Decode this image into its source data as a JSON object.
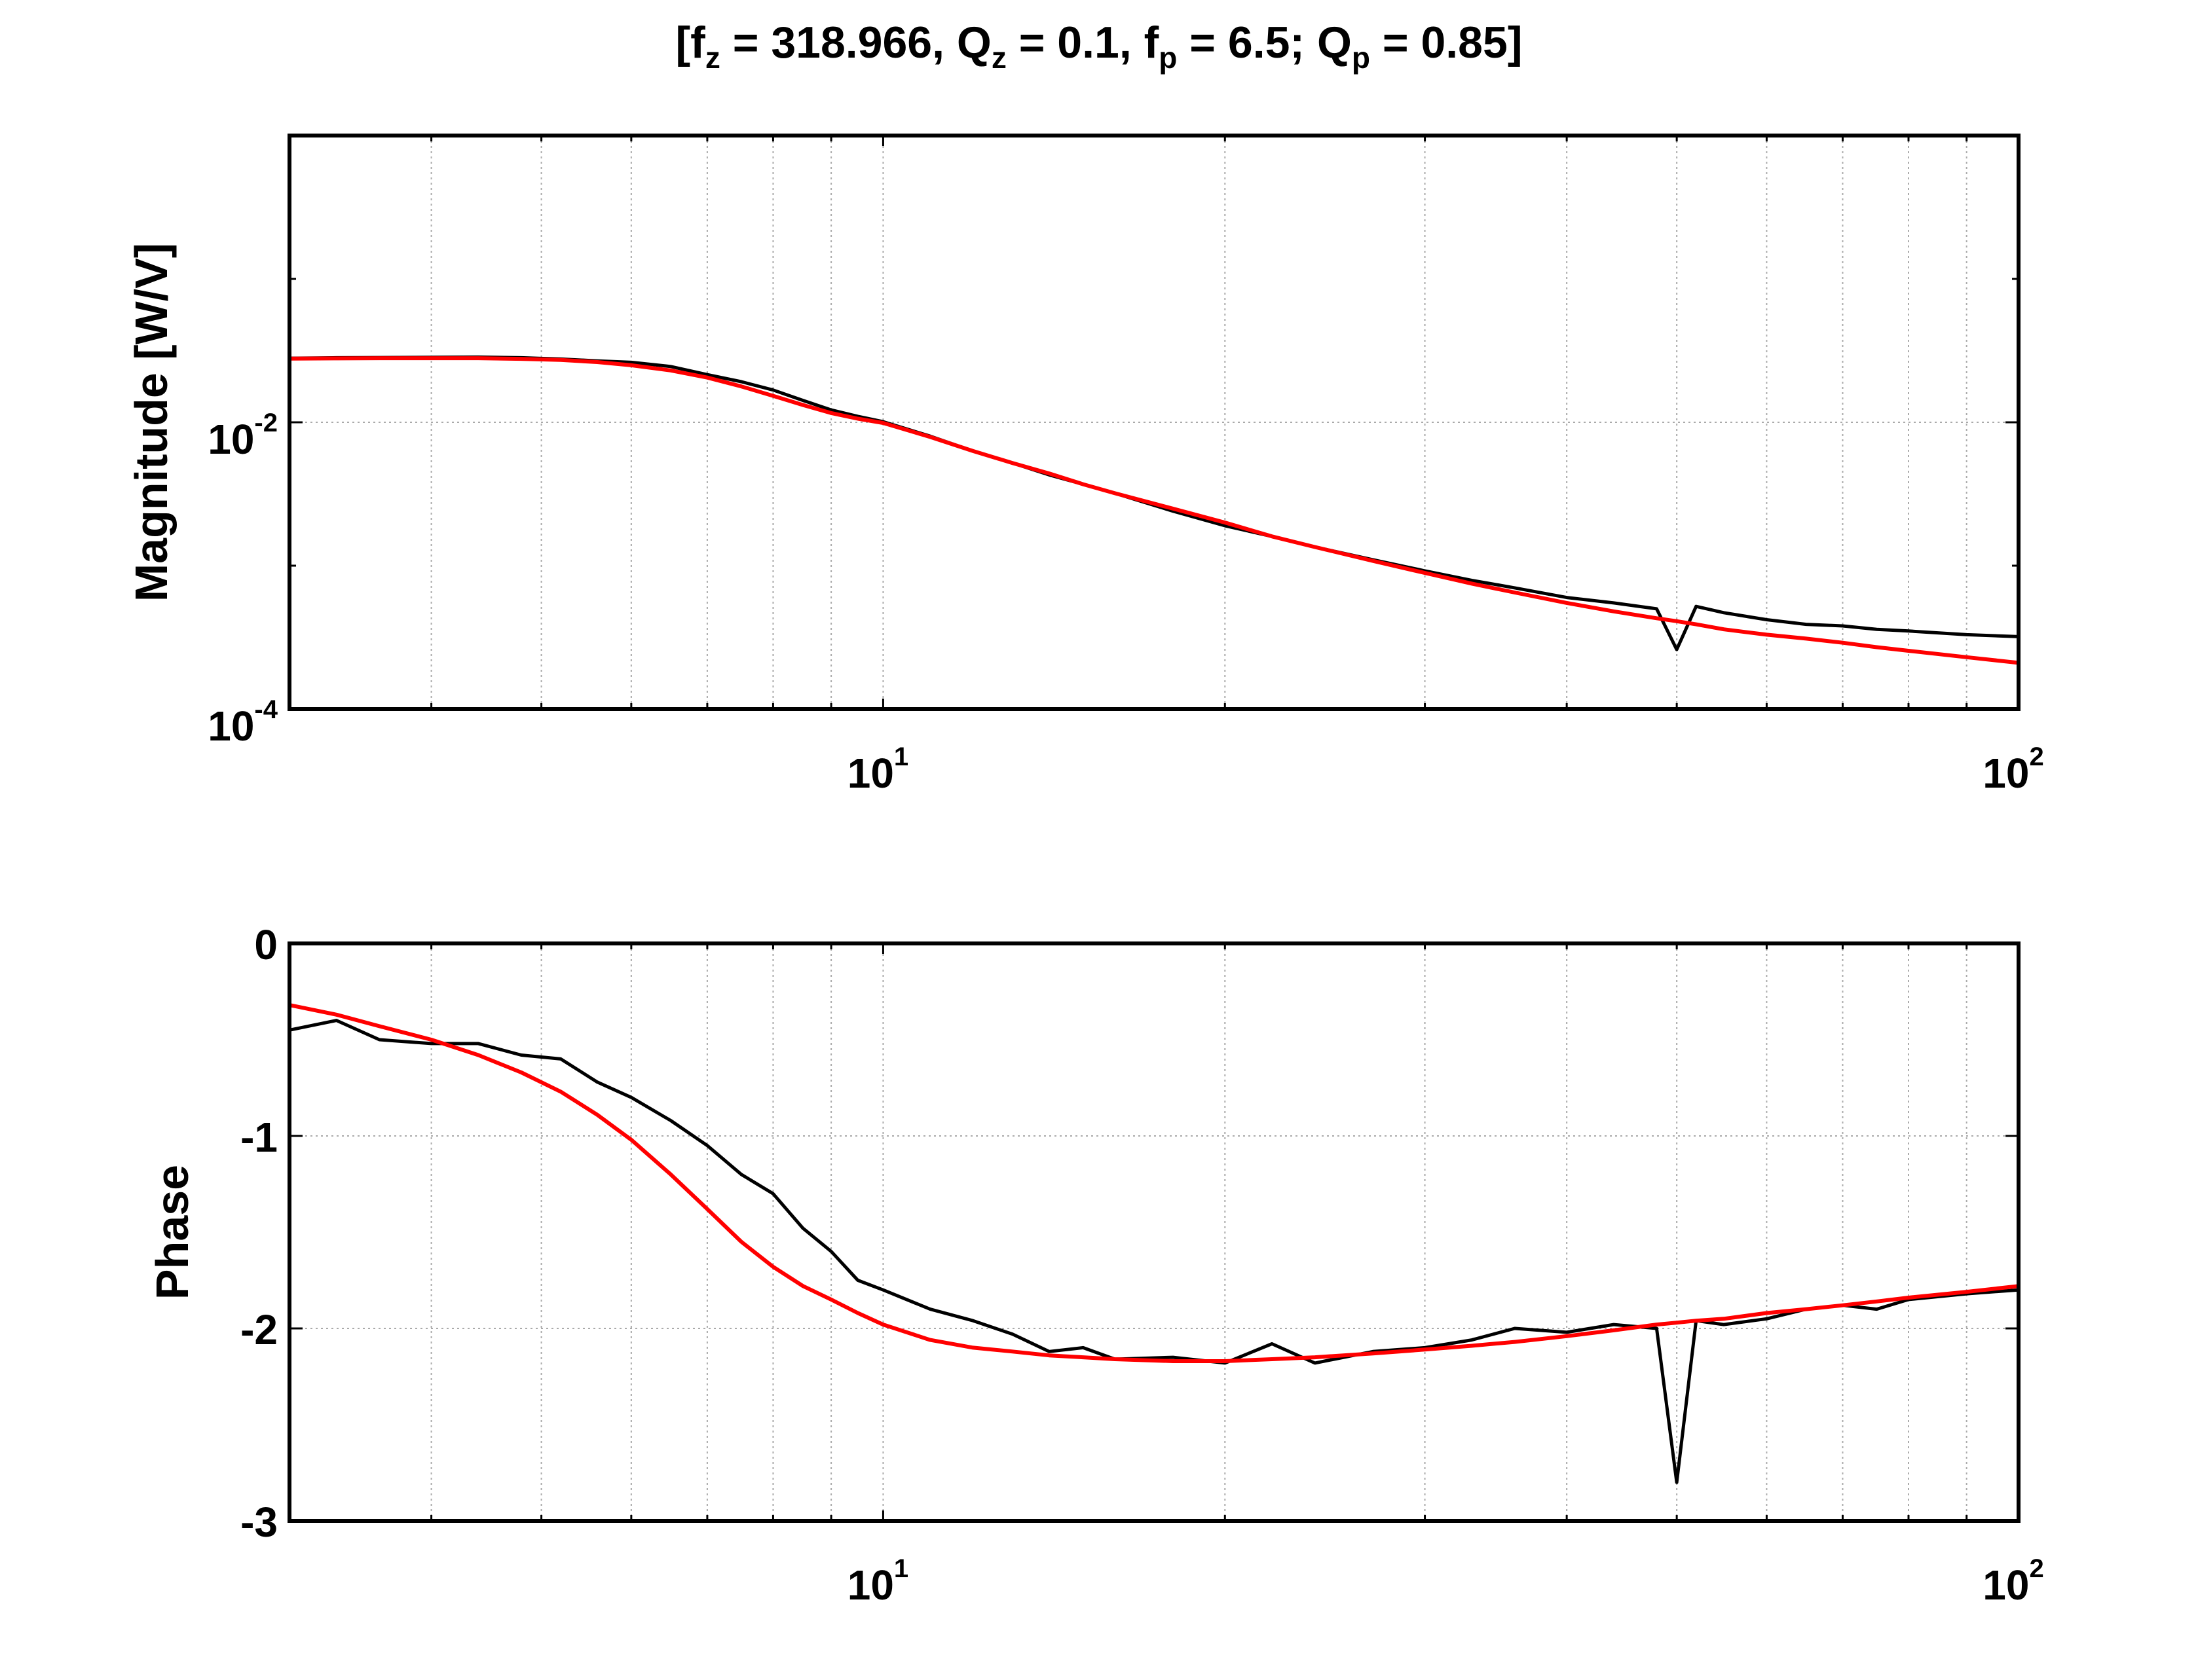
{
  "figure": {
    "title": {
      "parts": [
        {
          "text": "[f",
          "style": "normal"
        },
        {
          "text": "z",
          "style": "sub"
        },
        {
          "text": " = 318.966, Q",
          "style": "normal"
        },
        {
          "text": "z",
          "style": "sub"
        },
        {
          "text": " = 0.1, f",
          "style": "normal"
        },
        {
          "text": "p",
          "style": "sub"
        },
        {
          "text": " = 6.5; Q",
          "style": "normal"
        },
        {
          "text": "p",
          "style": "sub"
        },
        {
          "text": " = 0.85]",
          "style": "normal"
        }
      ]
    },
    "colors": {
      "measured": "#000000",
      "fit": "#ff0000",
      "grid": "#aaaaaa",
      "axes": "#000000"
    }
  },
  "chart_data": [
    {
      "type": "line",
      "panel": "magnitude",
      "ylabel": "Magnitude [W/V]",
      "xscale": "log",
      "yscale": "log",
      "xlim": [
        3,
        100
      ],
      "ylim": [
        0.0001,
        1
      ],
      "grid": true,
      "x_ticks": [
        {
          "base": "10",
          "exp": "1"
        },
        {
          "base": "10",
          "exp": "2"
        }
      ],
      "y_ticks": [
        {
          "base": "10",
          "exp": "-4"
        },
        {
          "base": "10",
          "exp": "-2"
        }
      ],
      "fit_params": {
        "fz": 318.966,
        "Qz": 0.1,
        "fp": 6.5,
        "Qp": 0.85,
        "gain": 0.028
      },
      "x_points": [
        3.0,
        3.3,
        3.6,
        4.0,
        4.4,
        4.8,
        5.2,
        5.6,
        6.0,
        6.5,
        7.0,
        7.5,
        8.0,
        8.5,
        9.0,
        9.5,
        10,
        11,
        12,
        13,
        14,
        15,
        16,
        18,
        20,
        22,
        24,
        27,
        30,
        33,
        36,
        40,
        44,
        48,
        50,
        52,
        55,
        60,
        65,
        70,
        75,
        80,
        90,
        100
      ],
      "series": [
        {
          "role": "measured",
          "color": "#000000",
          "values": [
            0.028,
            0.0282,
            0.0283,
            0.0284,
            0.0285,
            0.0282,
            0.0276,
            0.0268,
            0.0262,
            0.0245,
            0.0215,
            0.0192,
            0.0168,
            0.0142,
            0.0122,
            0.011,
            0.0101,
            0.008,
            0.0063,
            0.0052,
            0.0043,
            0.0037,
            0.0032,
            0.0024,
            0.0019,
            0.0016,
            0.00135,
            0.0011,
            0.00092,
            0.00079,
            0.0007,
            0.0006,
            0.00055,
            0.0005,
            0.00026,
            0.00052,
            0.00047,
            0.00042,
            0.00039,
            0.00038,
            0.00036,
            0.00035,
            0.00033,
            0.00032
          ]
        },
        {
          "role": "fit",
          "color": "#ff0000",
          "values": [
            0.0278,
            0.0279,
            0.028,
            0.028,
            0.028,
            0.0277,
            0.0272,
            0.0263,
            0.025,
            0.023,
            0.0205,
            0.0178,
            0.0153,
            0.0132,
            0.0116,
            0.0106,
            0.0099,
            0.0079,
            0.0063,
            0.0052,
            0.0044,
            0.0037,
            0.0032,
            0.0025,
            0.002,
            0.0016,
            0.00135,
            0.00108,
            0.00089,
            0.00075,
            0.00065,
            0.00055,
            0.00048,
            0.00043,
            0.00041,
            0.00039,
            0.00036,
            0.00033,
            0.00031,
            0.00029,
            0.00027,
            0.000255,
            0.00023,
            0.00021
          ]
        }
      ]
    },
    {
      "type": "line",
      "panel": "phase",
      "ylabel": "Phase",
      "xscale": "log",
      "yscale": "linear",
      "xlim": [
        3,
        100
      ],
      "ylim": [
        -3,
        0
      ],
      "grid": true,
      "x_ticks": [
        {
          "base": "10",
          "exp": "1"
        },
        {
          "base": "10",
          "exp": "2"
        }
      ],
      "y_ticks": [
        {
          "value": 0,
          "label": "0"
        },
        {
          "value": -1,
          "label": "-1"
        },
        {
          "value": -2,
          "label": "-2"
        },
        {
          "value": -3,
          "label": "-3"
        }
      ],
      "x_points": [
        3.0,
        3.3,
        3.6,
        4.0,
        4.4,
        4.8,
        5.2,
        5.6,
        6.0,
        6.5,
        7.0,
        7.5,
        8.0,
        8.5,
        9.0,
        9.5,
        10,
        11,
        12,
        13,
        14,
        15,
        16,
        18,
        20,
        22,
        24,
        27,
        30,
        33,
        36,
        40,
        44,
        48,
        50,
        52,
        55,
        60,
        65,
        70,
        75,
        80,
        90,
        100
      ],
      "series": [
        {
          "role": "measured",
          "color": "#000000",
          "values": [
            -0.45,
            -0.4,
            -0.5,
            -0.52,
            -0.52,
            -0.58,
            -0.6,
            -0.72,
            -0.8,
            -0.92,
            -1.05,
            -1.2,
            -1.3,
            -1.48,
            -1.6,
            -1.75,
            -1.8,
            -1.9,
            -1.96,
            -2.03,
            -2.12,
            -2.1,
            -2.16,
            -2.15,
            -2.18,
            -2.08,
            -2.18,
            -2.12,
            -2.1,
            -2.06,
            -2.0,
            -2.02,
            -1.98,
            -2.0,
            -2.8,
            -1.96,
            -1.98,
            -1.95,
            -1.9,
            -1.88,
            -1.9,
            -1.85,
            -1.82,
            -1.8
          ]
        },
        {
          "role": "fit",
          "color": "#ff0000",
          "values": [
            -0.32,
            -0.37,
            -0.43,
            -0.5,
            -0.58,
            -0.67,
            -0.77,
            -0.89,
            -1.02,
            -1.2,
            -1.38,
            -1.55,
            -1.68,
            -1.78,
            -1.85,
            -1.92,
            -1.98,
            -2.06,
            -2.1,
            -2.12,
            -2.14,
            -2.15,
            -2.16,
            -2.17,
            -2.17,
            -2.16,
            -2.15,
            -2.13,
            -2.11,
            -2.09,
            -2.07,
            -2.04,
            -2.01,
            -1.98,
            -1.97,
            -1.96,
            -1.95,
            -1.92,
            -1.9,
            -1.88,
            -1.86,
            -1.84,
            -1.81,
            -1.78
          ]
        }
      ]
    }
  ]
}
